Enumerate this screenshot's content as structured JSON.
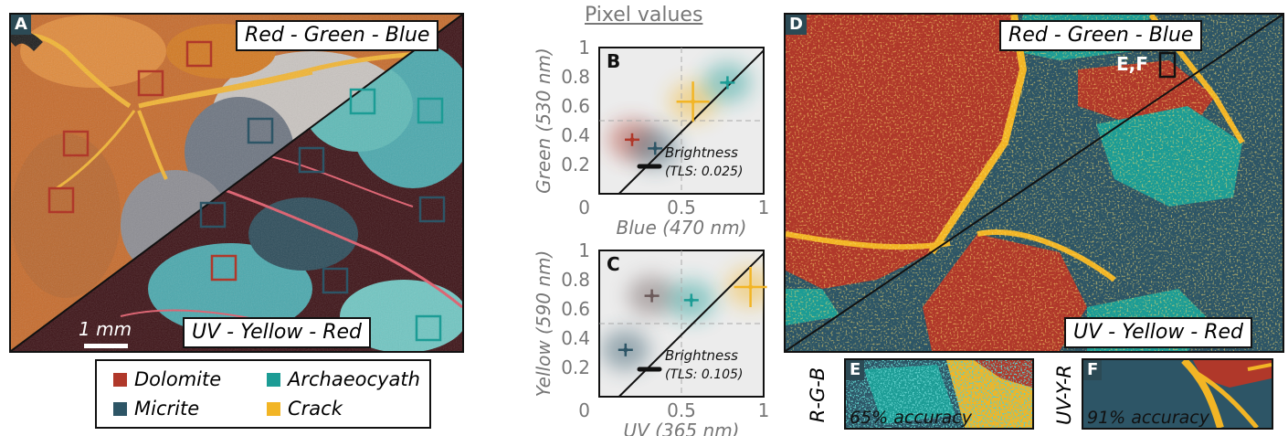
{
  "panel_a": {
    "letter": "A",
    "label_top": "Red - Green - Blue",
    "label_bottom": "UV - Yellow - Red",
    "scale_bar": "1 mm"
  },
  "legend": {
    "items": [
      {
        "label": "Dolomite",
        "color": "#b0382a"
      },
      {
        "label": "Archaeocyath",
        "color": "#1c9c95"
      },
      {
        "label": "Micrite",
        "color": "#2d5566"
      },
      {
        "label": "Crack",
        "color": "#f2b525"
      }
    ]
  },
  "pixel_values_title": "Pixel values",
  "chart_data": [
    {
      "type": "scatter",
      "panel": "B",
      "xlabel": "Blue (470 nm)",
      "ylabel": "Green (530 nm)",
      "xlim": [
        0,
        1
      ],
      "ylim": [
        0,
        1
      ],
      "x_ticks": [
        "0",
        "0.5",
        "1"
      ],
      "y_ticks": [
        "0.2",
        "0.4",
        "0.6",
        "0.8",
        "1"
      ],
      "annotation": "Brightness",
      "annotation_sub": "(TLS: 0.025)",
      "series": [
        {
          "name": "Dolomite",
          "color": "#b0382a",
          "x": 0.2,
          "y": 0.37
        },
        {
          "name": "Micrite",
          "color": "#2d5566",
          "x": 0.34,
          "y": 0.31
        },
        {
          "name": "Crack",
          "color": "#f2b525",
          "x": 0.57,
          "y": 0.63
        },
        {
          "name": "Archaeocyath",
          "color": "#1c9c95",
          "x": 0.78,
          "y": 0.76
        }
      ]
    },
    {
      "type": "scatter",
      "panel": "C",
      "xlabel": "UV (365 nm)",
      "ylabel": "Yellow (590 nm)",
      "xlim": [
        0,
        1
      ],
      "ylim": [
        0,
        1
      ],
      "x_ticks": [
        "0",
        "0.5",
        "1"
      ],
      "y_ticks": [
        "0.2",
        "0.4",
        "0.6",
        "0.8",
        "1"
      ],
      "annotation": "Brightness",
      "annotation_sub": "(TLS: 0.105)",
      "series": [
        {
          "name": "Micrite",
          "color": "#2d5566",
          "x": 0.16,
          "y": 0.32
        },
        {
          "name": "Dolomite",
          "color": "#6b5a5a",
          "x": 0.32,
          "y": 0.69
        },
        {
          "name": "Archaeocyath",
          "color": "#1c9c95",
          "x": 0.56,
          "y": 0.66
        },
        {
          "name": "Crack",
          "color": "#f2b525",
          "x": 0.92,
          "y": 0.75
        }
      ]
    }
  ],
  "panel_d": {
    "letter": "D",
    "label_top": "Red - Green - Blue",
    "label_bottom": "UV - Yellow - Red",
    "inset_label": "E,F"
  },
  "panel_e": {
    "letter": "E",
    "side_label": "R-G-B",
    "accuracy": "65% accuracy"
  },
  "panel_f": {
    "letter": "F",
    "side_label": "UV-Y-R",
    "accuracy": "91% accuracy"
  }
}
